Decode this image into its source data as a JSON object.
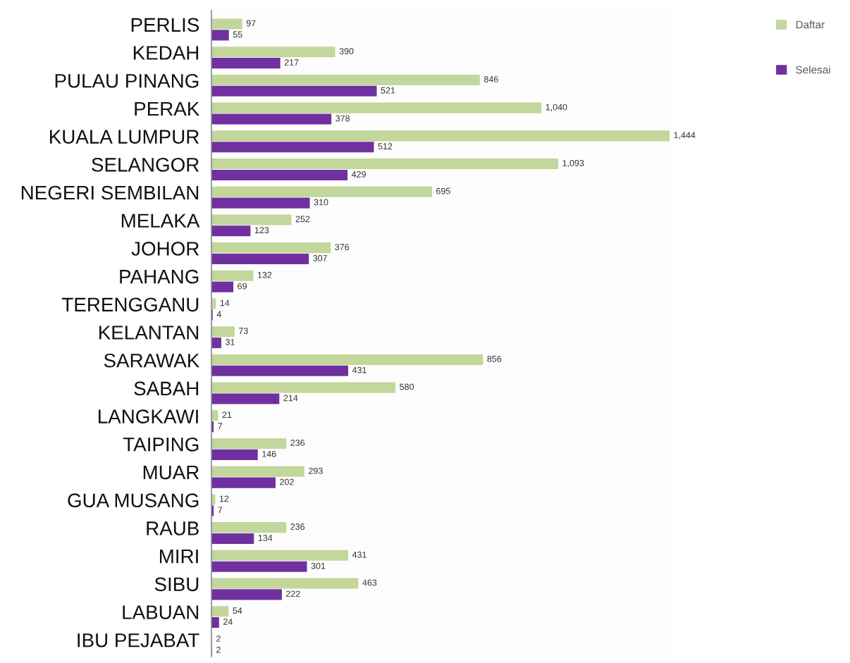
{
  "chart_data": {
    "type": "bar",
    "orientation": "horizontal",
    "categories": [
      "PERLIS",
      "KEDAH",
      "PULAU PINANG",
      "PERAK",
      "KUALA LUMPUR",
      "SELANGOR",
      "NEGERI SEMBILAN",
      "MELAKA",
      "JOHOR",
      "PAHANG",
      "TERENGGANU",
      "KELANTAN",
      "SARAWAK",
      "SABAH",
      "LANGKAWI",
      "TAIPING",
      "MUAR",
      "GUA MUSANG",
      "RAUB",
      "MIRI",
      "SIBU",
      "LABUAN",
      "IBU PEJABAT"
    ],
    "series": [
      {
        "name": "Daftar",
        "color": "#c3d69b",
        "values": [
          97,
          390,
          846,
          1040,
          1444,
          1093,
          695,
          252,
          376,
          132,
          14,
          73,
          856,
          580,
          21,
          236,
          293,
          12,
          236,
          431,
          463,
          54,
          2
        ],
        "value_labels": [
          "97",
          "390",
          "846",
          "1,040",
          "1,444",
          "1,093",
          "695",
          "252",
          "376",
          "132",
          "14",
          "73",
          "856",
          "580",
          "21",
          "236",
          "293",
          "12",
          "236",
          "431",
          "463",
          "54",
          "2"
        ]
      },
      {
        "name": "Selesai",
        "color": "#7030a0",
        "values": [
          55,
          217,
          521,
          378,
          512,
          429,
          310,
          123,
          307,
          69,
          4,
          31,
          431,
          214,
          7,
          146,
          202,
          7,
          134,
          301,
          222,
          24,
          2
        ],
        "value_labels": [
          "55",
          "217",
          "521",
          "378",
          "512",
          "429",
          "310",
          "123",
          "307",
          "69",
          "4",
          "31",
          "431",
          "214",
          "7",
          "146",
          "202",
          "7",
          "134",
          "301",
          "222",
          "24",
          "2"
        ]
      }
    ],
    "legend": "top right",
    "grid": false,
    "tick_labels": "y"
  }
}
